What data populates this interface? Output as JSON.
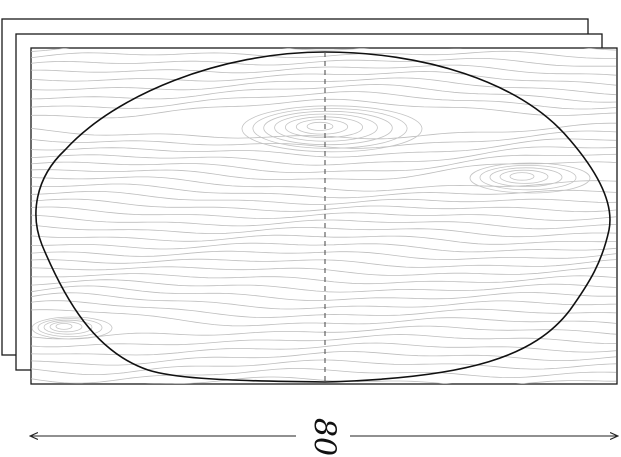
{
  "dimension": {
    "label": "80"
  },
  "colors": {
    "line": "#111111",
    "grain": "#bdbdbd",
    "background": "#ffffff"
  },
  "sheets": [
    "back-sheet",
    "middle-sheet",
    "front-sheet"
  ]
}
